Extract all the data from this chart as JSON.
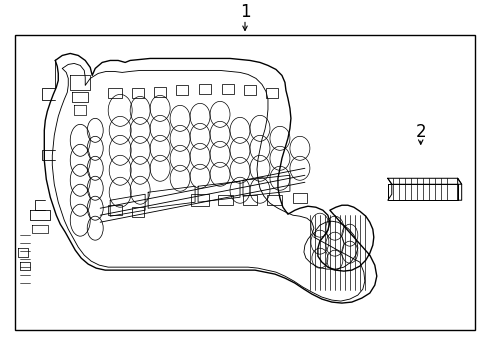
{
  "bg_color": "#ffffff",
  "line_color": "#000000",
  "lw": 0.9,
  "label1": "1",
  "label2": "2",
  "border": [
    15,
    22,
    460,
    320
  ]
}
